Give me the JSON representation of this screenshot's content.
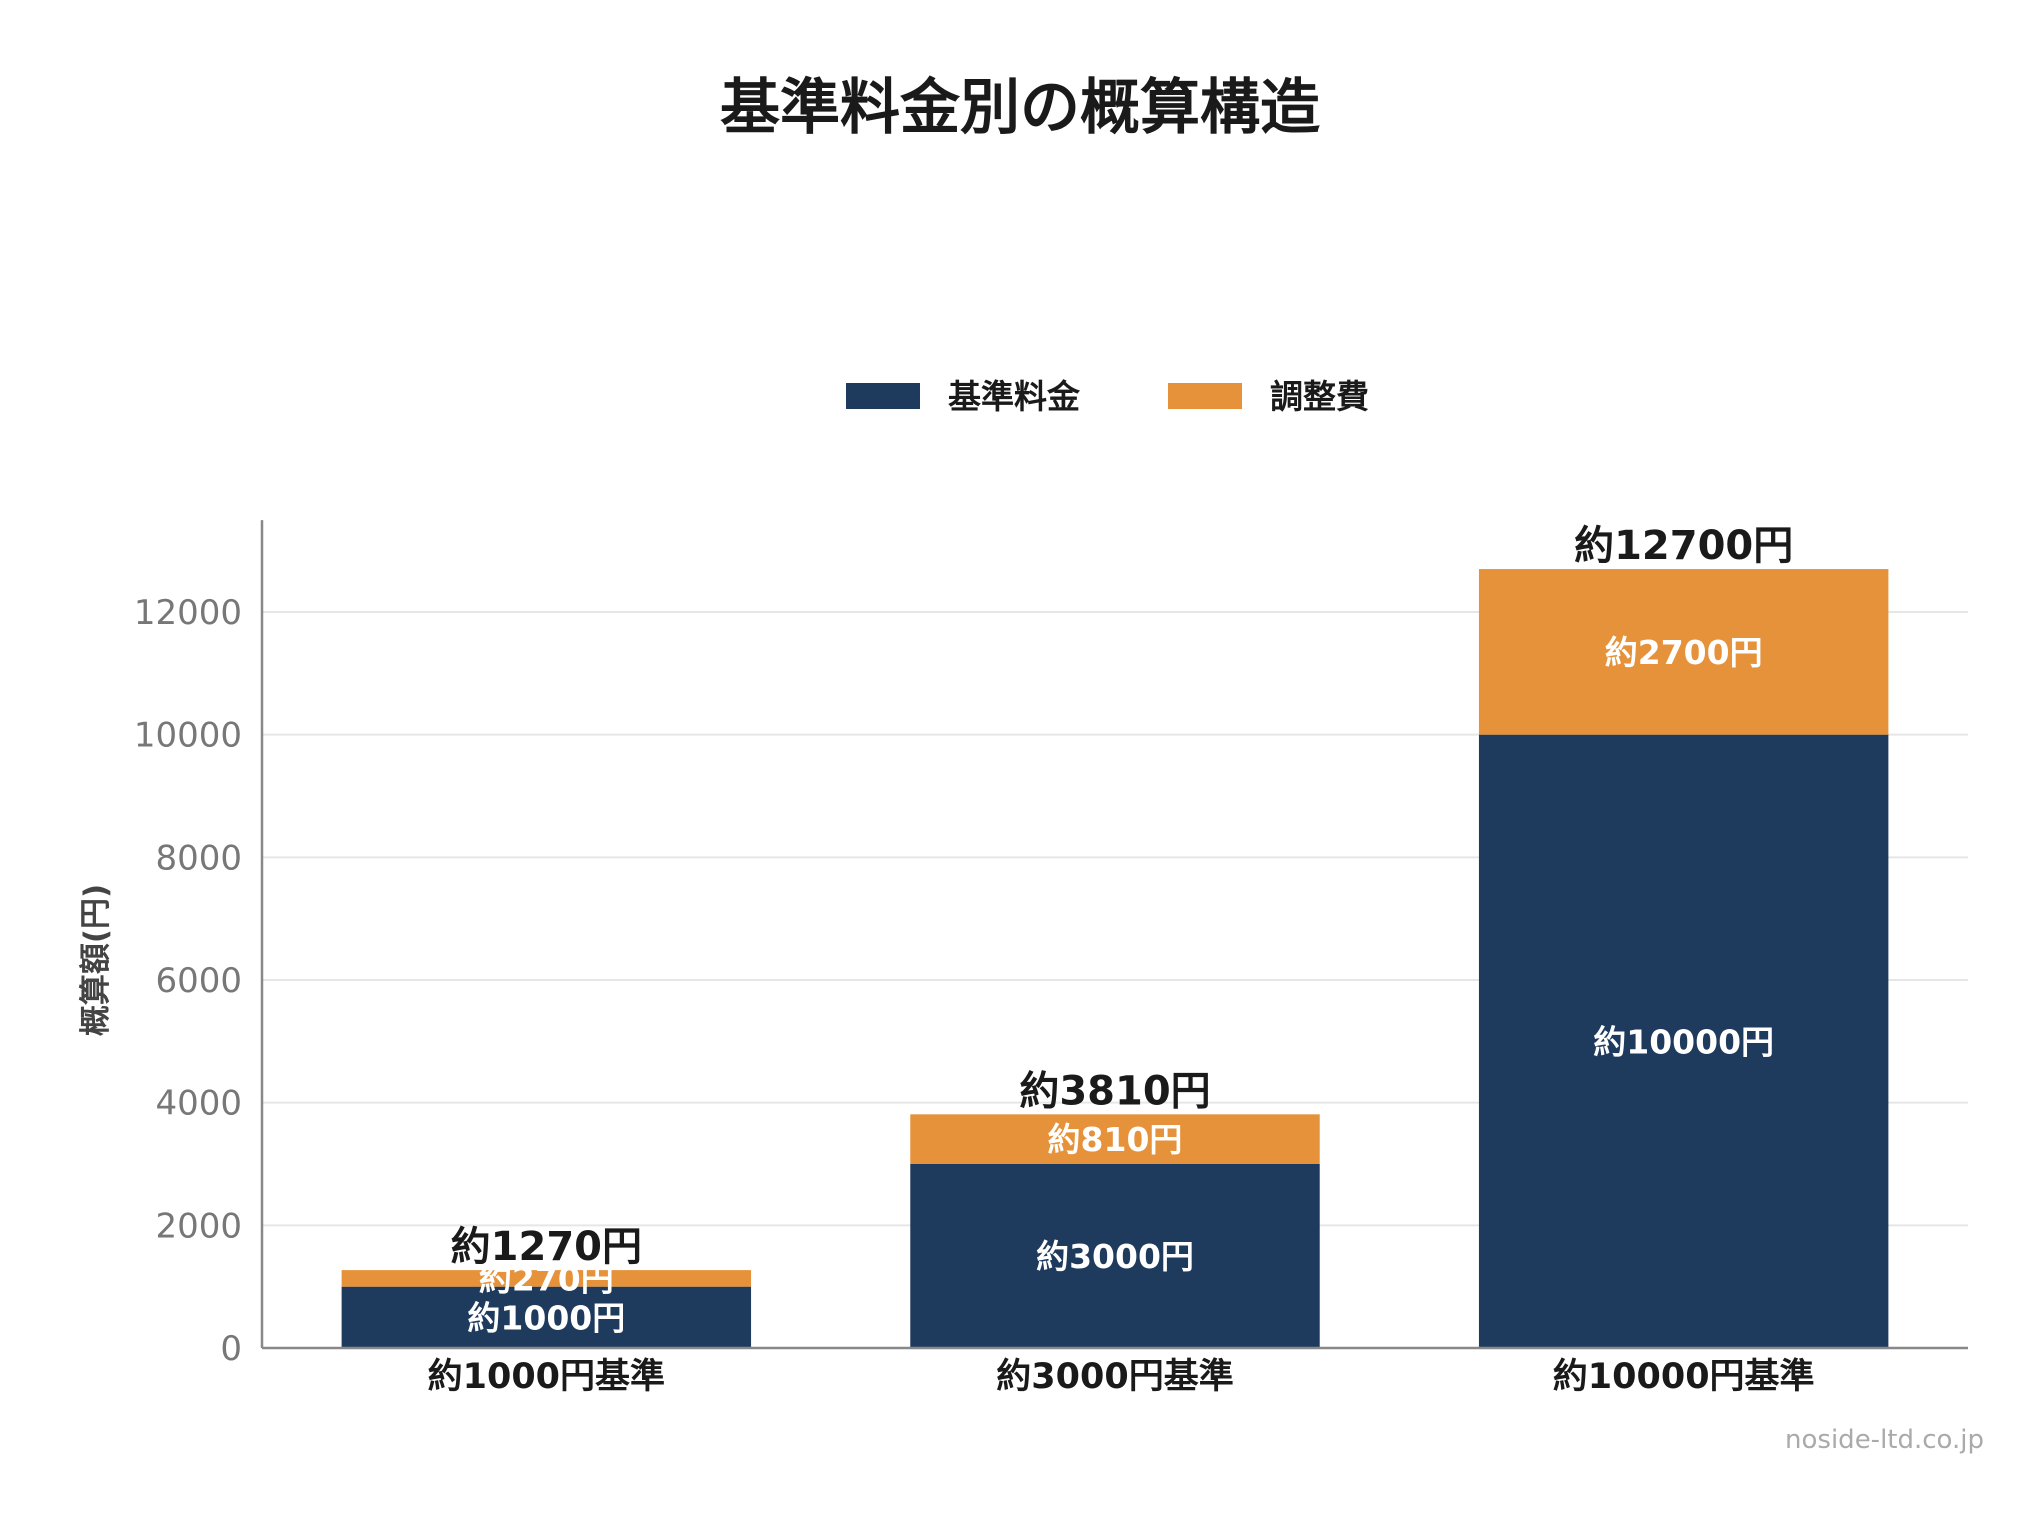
{
  "chart_data": {
    "type": "bar",
    "stacked": true,
    "title": "基準料金別の概算構造",
    "ylabel": "概算額(円)",
    "xlabel": "",
    "ylim": [
      0,
      13400
    ],
    "yticks": [
      0,
      2000,
      4000,
      6000,
      8000,
      10000,
      12000
    ],
    "grid": true,
    "legend_position": "top-center",
    "categories": [
      "約1000円基準",
      "約3000円基準",
      "約10000円基準"
    ],
    "series": [
      {
        "name": "基準料金",
        "color": "#1e3a5c",
        "values": [
          1000,
          3000,
          10000
        ],
        "labels": [
          "約1000円",
          "約3000円",
          "約10000円"
        ]
      },
      {
        "name": "調整費",
        "color": "#e6923a",
        "values": [
          270,
          810,
          2700
        ],
        "labels": [
          "約270円",
          "約810円",
          "約2700円"
        ]
      }
    ],
    "totals": [
      1270,
      3810,
      12700
    ],
    "total_labels": [
      "約1270円",
      "約3810円",
      "約12700円"
    ]
  },
  "source": "noside-ltd.co.jp"
}
